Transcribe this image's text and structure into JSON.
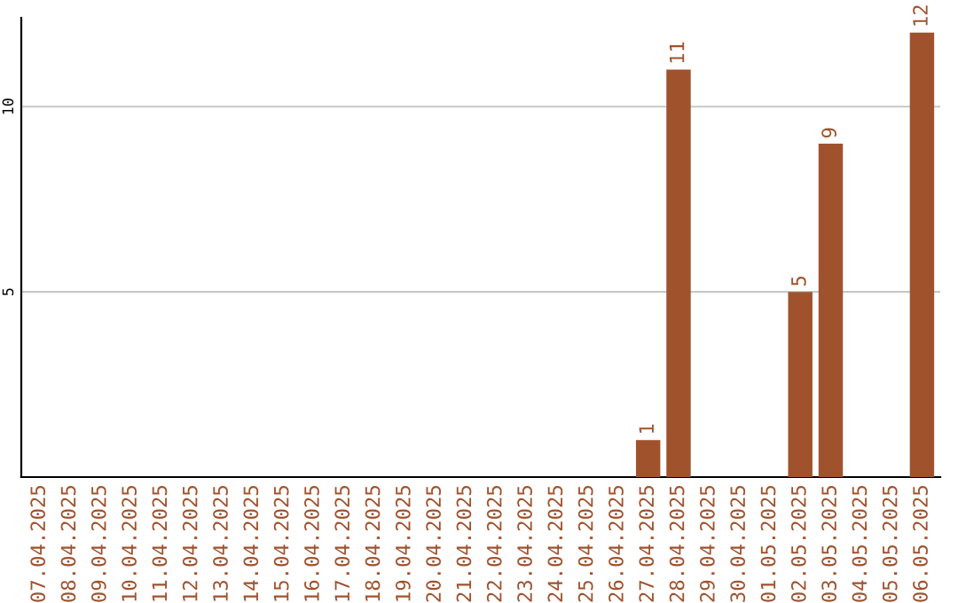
{
  "chart_data": {
    "type": "bar",
    "categories": [
      "07.04.2025",
      "08.04.2025",
      "09.04.2025",
      "10.04.2025",
      "11.04.2025",
      "12.04.2025",
      "13.04.2025",
      "14.04.2025",
      "15.04.2025",
      "16.04.2025",
      "17.04.2025",
      "18.04.2025",
      "19.04.2025",
      "20.04.2025",
      "21.04.2025",
      "22.04.2025",
      "23.04.2025",
      "24.04.2025",
      "25.04.2025",
      "26.04.2025",
      "27.04.2025",
      "28.04.2025",
      "29.04.2025",
      "30.04.2025",
      "01.05.2025",
      "02.05.2025",
      "03.05.2025",
      "04.05.2025",
      "05.05.2025",
      "06.05.2025"
    ],
    "series": [
      {
        "color": "#a0522d",
        "values": [
          0,
          0,
          0,
          0,
          0,
          0,
          0,
          0,
          0,
          0,
          0,
          0,
          0,
          0,
          0,
          0,
          0,
          0,
          0,
          0,
          1,
          11,
          0,
          0,
          0,
          5,
          9,
          0,
          0,
          12
        ],
        "value_labels": [
          null,
          null,
          null,
          null,
          null,
          null,
          null,
          null,
          null,
          null,
          null,
          null,
          null,
          null,
          null,
          null,
          null,
          null,
          null,
          null,
          "1",
          "11",
          null,
          null,
          null,
          "5",
          "9",
          null,
          null,
          "12"
        ]
      }
    ],
    "ylim": [
      0,
      12.4
    ],
    "yticks": [
      5,
      10
    ],
    "grid": "y",
    "legend": false
  }
}
